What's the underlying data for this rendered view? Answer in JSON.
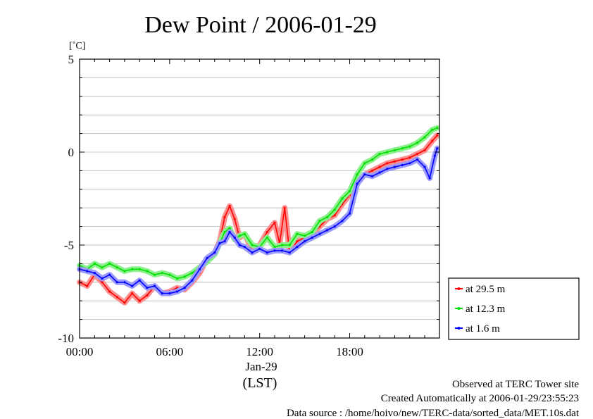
{
  "title": "Dew Point / 2006-01-29",
  "y_unit": "[˚C]",
  "x_date_label": "Jan-29",
  "x_tz_label": "(LST)",
  "footer": {
    "observed": "Observed at TERC Tower site",
    "created": "Created Automatically at 2006-01-29/23:55:23",
    "source": "Data source : /home/hoivo/new/TERC-data/sorted_data/MET.10s.dat"
  },
  "colors": {
    "red": "#ff0000",
    "green": "#00e000",
    "blue": "#0000ff"
  },
  "chart_data": {
    "type": "line",
    "xlim": [
      "00:00",
      "23:59"
    ],
    "ylim": [
      -10,
      5
    ],
    "x_ticks": [
      "00:00",
      "06:00",
      "12:00",
      "18:00"
    ],
    "y_ticks": [
      "5",
      "0",
      "-5",
      "-10"
    ],
    "grid": true,
    "legend_position": "right-bottom, outside plot",
    "series": [
      {
        "name": "at 29.5 m",
        "color": "#ff0000",
        "x": [
          "00:00",
          "00:30",
          "01:00",
          "01:30",
          "02:00",
          "02:30",
          "03:00",
          "03:30",
          "04:00",
          "04:30",
          "05:00",
          "05:30",
          "06:00",
          "06:30",
          "07:00",
          "07:30",
          "08:00",
          "08:30",
          "09:00",
          "09:20",
          "09:40",
          "10:00",
          "10:20",
          "10:40",
          "11:00",
          "11:30",
          "12:00",
          "12:30",
          "13:00",
          "13:20",
          "13:40",
          "14:00",
          "14:30",
          "15:00",
          "15:30",
          "16:00",
          "16:30",
          "17:00",
          "17:30",
          "18:00",
          "18:30",
          "19:00",
          "19:30",
          "20:00",
          "20:30",
          "21:00",
          "21:30",
          "22:00",
          "22:30",
          "23:00",
          "23:30",
          "23:50"
        ],
        "y": [
          -7.0,
          -7.2,
          -6.6,
          -7.0,
          -7.5,
          -7.8,
          -8.1,
          -7.6,
          -8.0,
          -7.7,
          -7.2,
          -7.6,
          -7.5,
          -7.3,
          -7.4,
          -7.0,
          -6.5,
          -5.7,
          -5.4,
          -4.8,
          -3.5,
          -2.9,
          -3.6,
          -4.6,
          -4.4,
          -5.3,
          -5.0,
          -4.3,
          -3.8,
          -4.9,
          -3.0,
          -5.4,
          -4.8,
          -4.6,
          -4.4,
          -4.0,
          -3.6,
          -3.4,
          -2.8,
          -2.3,
          -1.7,
          -1.2,
          -1.0,
          -0.8,
          -0.6,
          -0.5,
          -0.4,
          -0.3,
          -0.1,
          0.1,
          0.6,
          0.9
        ]
      },
      {
        "name": "at 12.3 m",
        "color": "#00e000",
        "x": [
          "00:00",
          "00:30",
          "01:00",
          "01:30",
          "02:00",
          "02:30",
          "03:00",
          "03:30",
          "04:00",
          "04:30",
          "05:00",
          "05:30",
          "06:00",
          "06:30",
          "07:00",
          "07:30",
          "08:00",
          "08:30",
          "09:00",
          "09:20",
          "09:40",
          "10:00",
          "10:20",
          "10:40",
          "11:00",
          "11:30",
          "12:00",
          "12:30",
          "13:00",
          "13:30",
          "14:00",
          "14:30",
          "15:00",
          "15:30",
          "16:00",
          "16:30",
          "17:00",
          "17:30",
          "18:00",
          "18:30",
          "19:00",
          "19:30",
          "20:00",
          "20:30",
          "21:00",
          "21:30",
          "22:00",
          "22:30",
          "23:00",
          "23:30",
          "23:50"
        ],
        "y": [
          -6.1,
          -6.3,
          -6.0,
          -6.2,
          -6.0,
          -6.2,
          -6.4,
          -6.3,
          -6.3,
          -6.4,
          -6.6,
          -6.5,
          -6.6,
          -6.8,
          -6.7,
          -6.5,
          -6.2,
          -5.9,
          -5.5,
          -4.9,
          -4.3,
          -4.1,
          -4.7,
          -4.5,
          -4.4,
          -5.0,
          -5.1,
          -4.6,
          -5.1,
          -5.0,
          -5.0,
          -4.4,
          -4.5,
          -4.3,
          -3.7,
          -3.5,
          -3.1,
          -2.5,
          -2.1,
          -1.2,
          -0.6,
          -0.4,
          -0.1,
          0.0,
          0.1,
          0.2,
          0.3,
          0.5,
          0.8,
          1.2,
          1.3
        ]
      },
      {
        "name": "at 1.6 m",
        "color": "#0000ff",
        "x": [
          "00:00",
          "00:30",
          "01:00",
          "01:30",
          "02:00",
          "02:30",
          "03:00",
          "03:30",
          "04:00",
          "04:30",
          "05:00",
          "05:30",
          "06:00",
          "06:30",
          "07:00",
          "07:30",
          "08:00",
          "08:30",
          "09:00",
          "09:20",
          "09:40",
          "10:00",
          "10:20",
          "10:40",
          "11:00",
          "11:30",
          "12:00",
          "12:30",
          "13:00",
          "13:30",
          "14:00",
          "14:30",
          "15:00",
          "15:30",
          "16:00",
          "16:30",
          "17:00",
          "17:30",
          "18:00",
          "18:30",
          "19:00",
          "19:30",
          "20:00",
          "20:30",
          "21:00",
          "21:30",
          "22:00",
          "22:30",
          "23:00",
          "23:20",
          "23:40",
          "23:50"
        ],
        "y": [
          -6.3,
          -6.4,
          -6.5,
          -6.8,
          -6.6,
          -7.0,
          -7.0,
          -7.2,
          -6.9,
          -7.3,
          -7.2,
          -7.6,
          -7.6,
          -7.5,
          -7.3,
          -6.9,
          -6.3,
          -5.7,
          -5.4,
          -4.9,
          -4.8,
          -4.3,
          -4.6,
          -5.0,
          -5.1,
          -5.4,
          -5.2,
          -5.4,
          -5.3,
          -5.3,
          -5.4,
          -5.1,
          -4.8,
          -4.6,
          -4.4,
          -4.2,
          -4.0,
          -3.7,
          -3.3,
          -1.7,
          -1.2,
          -1.3,
          -1.1,
          -0.9,
          -0.8,
          -0.7,
          -0.6,
          -0.4,
          -0.8,
          -1.4,
          -0.2,
          0.2
        ]
      }
    ]
  }
}
